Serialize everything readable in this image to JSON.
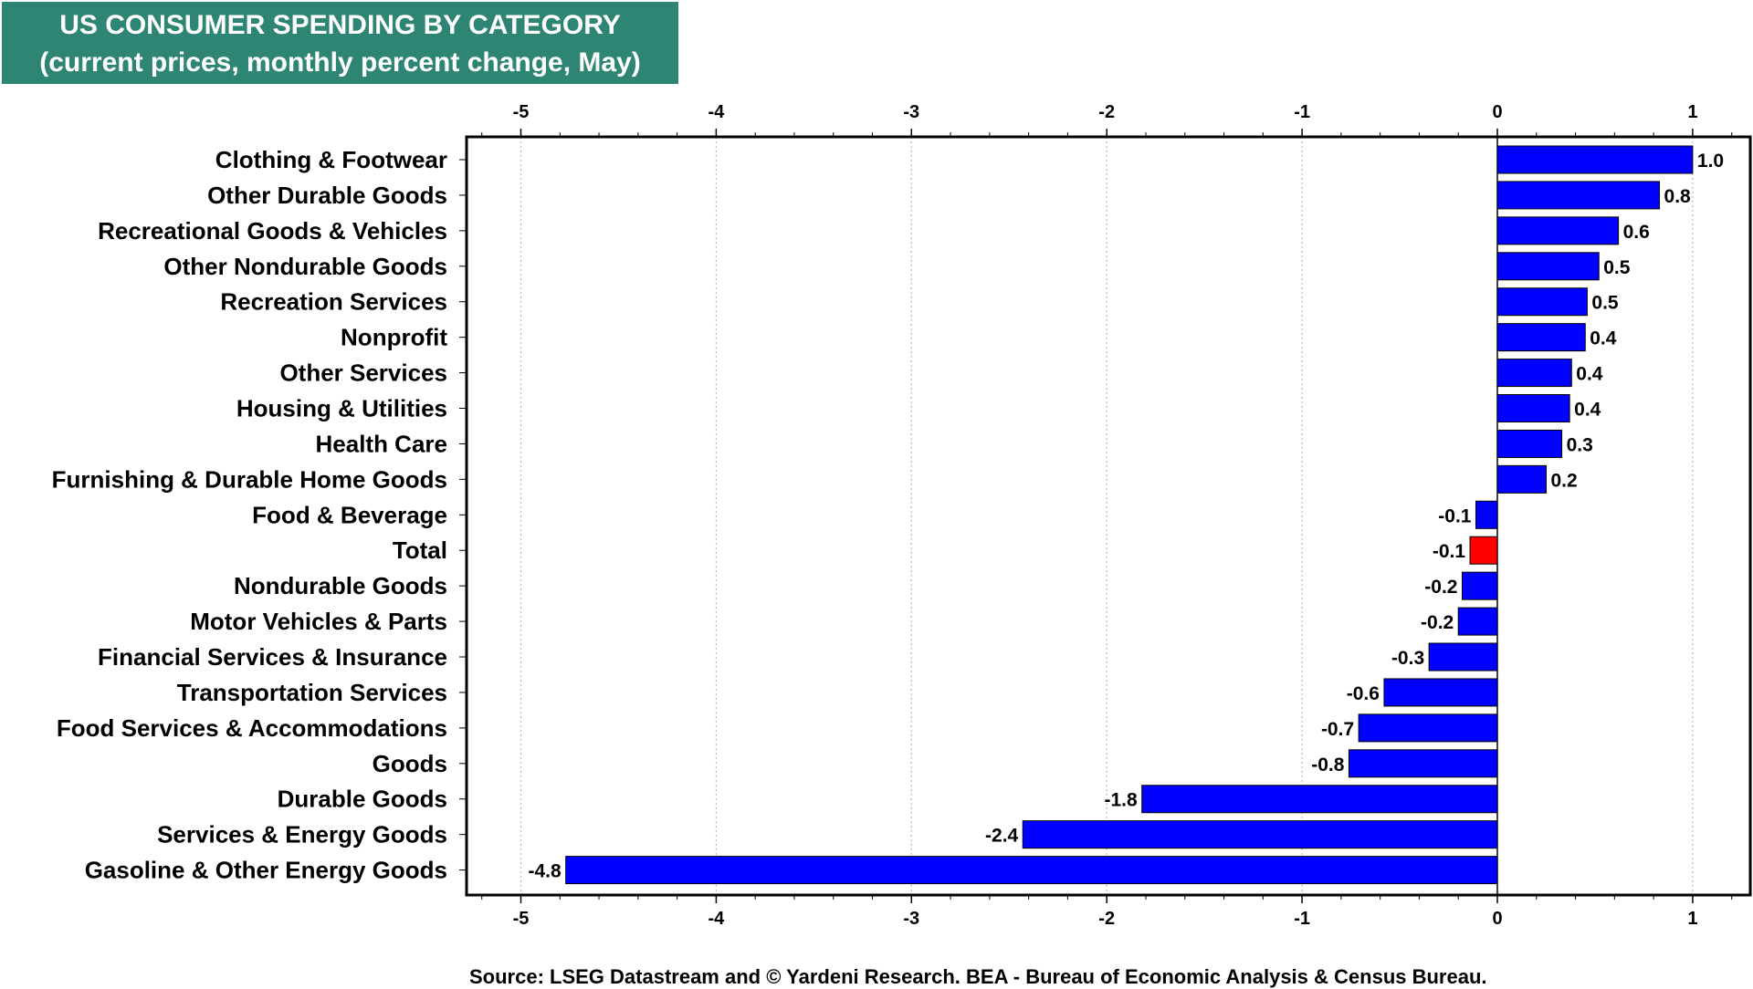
{
  "header": {
    "title": "US CONSUMER SPENDING BY CATEGORY",
    "subtitle": "(current prices, monthly percent change, May)"
  },
  "footer": {
    "source": "Source: LSEG Datastream and © Yardeni Research. BEA - Bureau of Economic Analysis & Census Bureau."
  },
  "chart_data": {
    "type": "bar",
    "orientation": "horizontal",
    "title": "US CONSUMER SPENDING BY CATEGORY",
    "subtitle": "(current prices, monthly percent change, May)",
    "xlabel": "",
    "ylabel": "",
    "xlim": [
      -5.35,
      1.3
    ],
    "xticks": [
      -5,
      -4,
      -3,
      -2,
      -1,
      0,
      1
    ],
    "xtick_labels": [
      "-5",
      "-4",
      "-3",
      "-2",
      "-1",
      "0",
      "1"
    ],
    "grid": "vertical dotted",
    "legend": "none",
    "colors": {
      "bar": "#0000ff",
      "highlight": "#ff0000",
      "grid": "#bbbbbb",
      "frame": "#000000"
    },
    "highlight_category": "Total",
    "categories": [
      "Clothing & Footwear",
      "Other Durable Goods",
      "Recreational Goods & Vehicles",
      "Other Nondurable Goods",
      "Recreation Services",
      "Nonprofit",
      "Other Services",
      "Housing & Utilities",
      "Health Care",
      "Furnishing & Durable Home Goods",
      "Food & Beverage",
      "Total",
      "Nondurable Goods",
      "Motor Vehicles & Parts",
      "Financial Services & Insurance",
      "Transportation Services",
      "Food Services & Accommodations",
      "Goods",
      "Durable Goods",
      "Services & Energy Goods",
      "Gasoline & Other Energy Goods"
    ],
    "values": [
      1.0,
      0.83,
      0.62,
      0.52,
      0.46,
      0.45,
      0.38,
      0.37,
      0.33,
      0.25,
      -0.11,
      -0.14,
      -0.18,
      -0.2,
      -0.35,
      -0.58,
      -0.71,
      -0.76,
      -1.82,
      -2.43,
      -4.77
    ],
    "value_labels": [
      "1.0",
      "0.8",
      "0.6",
      "0.5",
      "0.5",
      "0.4",
      "0.4",
      "0.4",
      "0.3",
      "0.2",
      "-0.1",
      "-0.1",
      "-0.2",
      "-0.2",
      "-0.3",
      "-0.6",
      "-0.7",
      "-0.8",
      "-1.8",
      "-2.4",
      "-4.8"
    ]
  }
}
